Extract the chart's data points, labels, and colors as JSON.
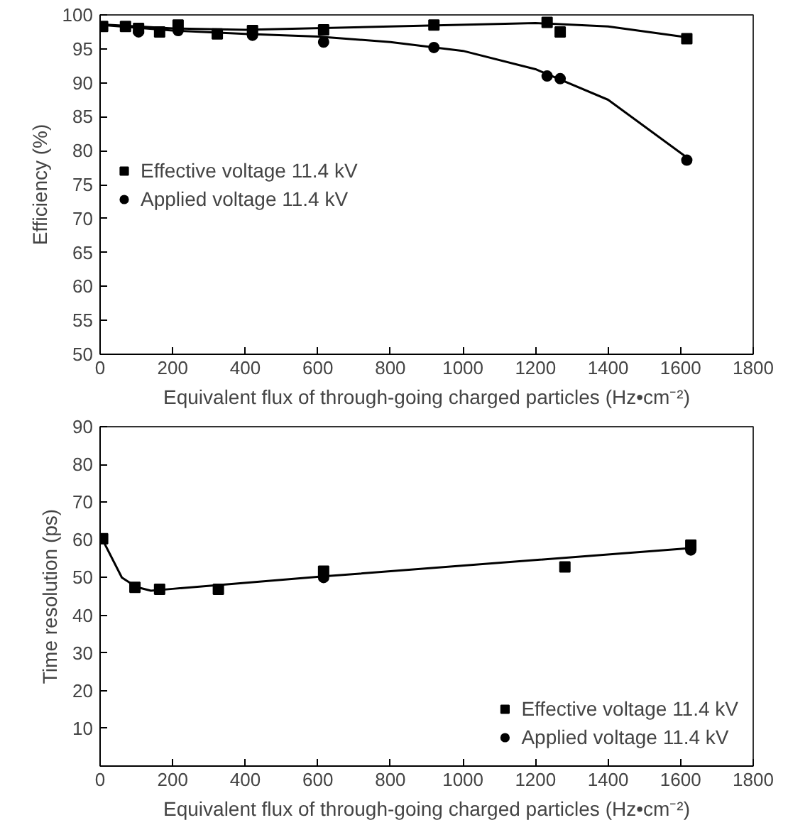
{
  "chart_data": [
    {
      "type": "scatter",
      "xlabel": "Equivalent flux of through-going charged particles (Hz•cm⁻²)",
      "ylabel": "Efficiency (%)",
      "xlim": [
        0,
        1800
      ],
      "ylim": [
        50,
        100
      ],
      "xticks": [
        0,
        200,
        400,
        600,
        800,
        1000,
        1200,
        1400,
        1600,
        1800
      ],
      "yticks": [
        50,
        55,
        60,
        65,
        70,
        75,
        80,
        85,
        90,
        95,
        100
      ],
      "grid": false,
      "legend": "left",
      "series": [
        {
          "name": "Effective voltage 11.4 kV",
          "color": "#000000",
          "marker": "square",
          "x": [
            7,
            70,
            106,
            164,
            215,
            323,
            420,
            616,
            920,
            1232,
            1268,
            1617
          ],
          "values": [
            98.3,
            98.3,
            98.0,
            97.5,
            98.5,
            97.2,
            97.7,
            97.8,
            98.5,
            98.9,
            97.5,
            96.5
          ]
        },
        {
          "name": "Applied voltage 11.4 kV",
          "color": "#000000",
          "marker": "circle",
          "x": [
            106,
            215,
            420,
            616,
            920,
            1232,
            1268,
            1617
          ],
          "values": [
            97.5,
            97.7,
            97.0,
            96.0,
            95.2,
            91.0,
            90.6,
            78.6
          ]
        },
        {
          "type": "line",
          "color": "#000000",
          "marker": "none",
          "x": [
            7,
            200,
            400,
            800,
            1200,
            1400,
            1617
          ],
          "values": [
            98.6,
            98.0,
            97.8,
            98.3,
            98.8,
            98.3,
            96.7
          ]
        },
        {
          "type": "line",
          "color": "#000000",
          "marker": "none",
          "x": [
            7,
            200,
            400,
            600,
            800,
            1000,
            1200,
            1400,
            1617
          ],
          "values": [
            98.5,
            97.7,
            97.2,
            96.8,
            96.0,
            94.7,
            92.0,
            87.5,
            79.0
          ]
        }
      ]
    },
    {
      "type": "scatter",
      "xlabel": "Equivalent flux of through-going charged particles (Hz•cm⁻²)",
      "ylabel": "Time resolution (ps)",
      "xlim": [
        0,
        1800
      ],
      "ylim": [
        0,
        90
      ],
      "xticks": [
        0,
        200,
        400,
        600,
        800,
        1000,
        1200,
        1400,
        1600,
        1800
      ],
      "yticks": [
        {
          "value": 0,
          "label": null
        },
        10,
        20,
        30,
        40,
        50,
        60,
        70,
        80,
        90
      ],
      "grid": false,
      "legend": "bottom right",
      "series": [
        {
          "name": "Effective voltage 11.4 kV",
          "color": "#000000",
          "marker": "square",
          "x": [
            7,
            96,
            164,
            326,
            616,
            1281,
            1628
          ],
          "values": [
            60.3,
            47.4,
            46.9,
            46.9,
            51.7,
            52.8,
            58.6
          ]
        },
        {
          "name": "Applied voltage 11.4 kV",
          "color": "#000000",
          "marker": "circle",
          "x": [
            616,
            1628
          ],
          "values": [
            50.0,
            57.3
          ]
        },
        {
          "type": "line",
          "color": "#000000",
          "marker": "none",
          "x": [
            7,
            60,
            100,
            140,
            200,
            616,
            1628
          ],
          "values": [
            60,
            50,
            47.5,
            46.5,
            47,
            50.3,
            57.8
          ]
        }
      ]
    }
  ]
}
